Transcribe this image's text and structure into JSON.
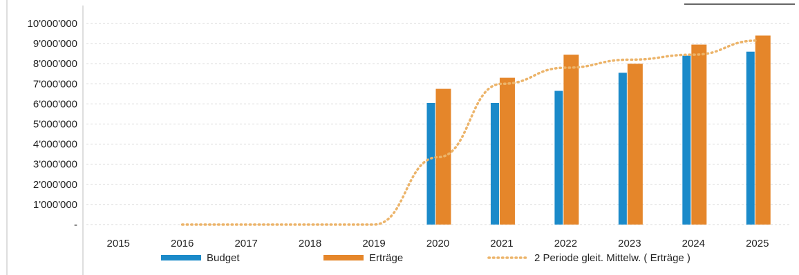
{
  "chart_data": {
    "type": "bar",
    "categories": [
      "2015",
      "2016",
      "2017",
      "2018",
      "2019",
      "2020",
      "2021",
      "2022",
      "2023",
      "2024",
      "2025"
    ],
    "y_tick_labels": [
      "-",
      "1'000'000",
      "2'000'000",
      "3'000'000",
      "4'000'000",
      "5'000'000",
      "6'000'000",
      "7'000'000",
      "8'000'000",
      "9'000'000",
      "10'000'000"
    ],
    "ylim": [
      0,
      10000000
    ],
    "grid": true,
    "legend_position": "bottom",
    "series": [
      {
        "name": "Budget",
        "type": "bar",
        "color": "#1b8ac9",
        "values": [
          null,
          null,
          null,
          null,
          null,
          6050000,
          6050000,
          6650000,
          7550000,
          8400000,
          8600000
        ]
      },
      {
        "name": "Erträge",
        "type": "bar",
        "color": "#e5862a",
        "values": [
          null,
          null,
          null,
          null,
          null,
          6750000,
          7300000,
          8450000,
          8000000,
          8950000,
          9400000
        ]
      },
      {
        "name": "2 Periode gleit. Mittelw. ( Erträge )",
        "type": "line",
        "style": "dotted",
        "color": "#ecb46a",
        "values": [
          null,
          0,
          0,
          0,
          0,
          3350000,
          7000000,
          7800000,
          8200000,
          8450000,
          9150000
        ]
      }
    ]
  }
}
